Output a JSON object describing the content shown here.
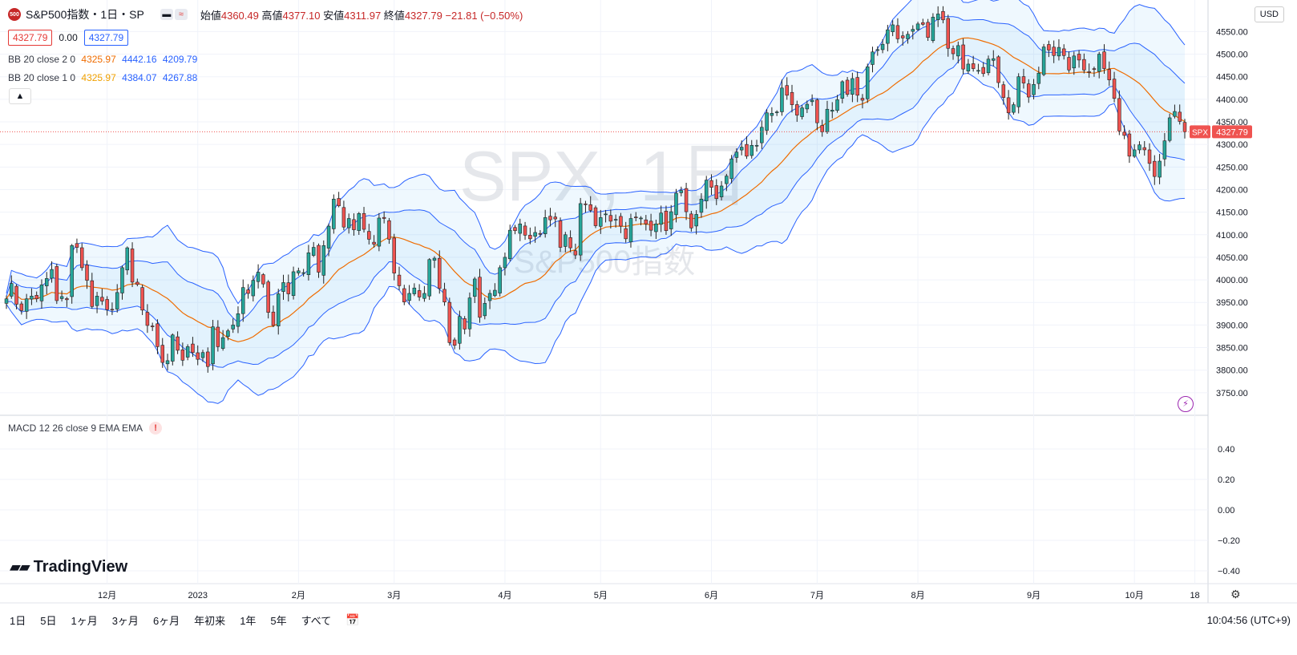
{
  "header": {
    "logo_text": "500",
    "symbol_title": "S&P500指数・1日・SP",
    "ohlc": [
      {
        "label": "始値",
        "value": "4360.49"
      },
      {
        "label": "高値",
        "value": "4377.10"
      },
      {
        "label": "安値",
        "value": "4311.97"
      },
      {
        "label": "終値",
        "value": "4327.79"
      },
      {
        "label": "",
        "value": "−21.81 (−0.50%)"
      }
    ],
    "sell_price": "4327.79",
    "spread": "0.00",
    "buy_price": "4327.79"
  },
  "indicators": [
    {
      "label": "BB 20 close 2 0",
      "values": [
        "4325.97",
        "4442.16",
        "4209.79"
      ],
      "colors": [
        "#ef6c00",
        "#2962ff",
        "#2962ff"
      ]
    },
    {
      "label": "BB 20 close 1 0",
      "values": [
        "4325.97",
        "4384.07",
        "4267.88"
      ],
      "colors": [
        "#f0a000",
        "#2962ff",
        "#2962ff"
      ]
    }
  ],
  "macd": {
    "label": "MACD 12 26 close 9 EMA EMA",
    "alert_icon": "exclamation-icon"
  },
  "watermark": {
    "line1": "SPX, 1日",
    "line2": "S&P500指数"
  },
  "currency": "USD",
  "price_tag": {
    "symbol": "SPX",
    "value": "4327.79"
  },
  "brand": "TradingView",
  "time_ranges": [
    "1日",
    "5日",
    "1ヶ月",
    "3ヶ月",
    "6ヶ月",
    "年初来",
    "1年",
    "5年",
    "すべて"
  ],
  "clock": "10:04:56 (UTC+9)",
  "colors": {
    "up": "#26a69a",
    "down": "#ef5350",
    "band": "#2962ff",
    "mid": "#ef6c00"
  },
  "chart_data": {
    "type": "candlestick",
    "ylim": [
      3700,
      4620
    ],
    "y_ticks": [
      3750,
      3800,
      3850,
      3900,
      3950,
      4000,
      4050,
      4100,
      4150,
      4200,
      4250,
      4300,
      4350,
      4400,
      4450,
      4500,
      4550
    ],
    "macd_ticks": [
      "0.40",
      "0.20",
      "0.00",
      "−0.20",
      "−0.40"
    ],
    "x_labels": [
      {
        "label": "12月",
        "i": 20
      },
      {
        "label": "2023",
        "i": 38
      },
      {
        "label": "2月",
        "i": 58
      },
      {
        "label": "3月",
        "i": 77
      },
      {
        "label": "4月",
        "i": 99
      },
      {
        "label": "5月",
        "i": 118
      },
      {
        "label": "6月",
        "i": 140
      },
      {
        "label": "7月",
        "i": 161
      },
      {
        "label": "8月",
        "i": 181
      },
      {
        "label": "9月",
        "i": 204
      },
      {
        "label": "10月",
        "i": 224
      },
      {
        "label": "18",
        "i": 236
      }
    ],
    "closes": [
      3958,
      3992,
      3946,
      3932,
      3958,
      3964,
      3958,
      3989,
      4003,
      4023,
      3954,
      3963,
      3956,
      4076,
      4072,
      4027,
      3999,
      3941,
      3964,
      3953,
      3934,
      3933,
      3972,
      4027,
      4071,
      3995,
      3990,
      3933,
      3899,
      3896,
      3852,
      3817,
      3821,
      3878,
      3844,
      3822,
      3852,
      3839,
      3824,
      3839,
      3808,
      3896,
      3852,
      3872,
      3887,
      3900,
      3925,
      3983,
      3970,
      3999,
      4017,
      3991,
      3928,
      3899,
      3969,
      3994,
      3969,
      4018,
      4020,
      4016,
      4060,
      4072,
      4017,
      4076,
      4119,
      4179,
      4164,
      4117,
      4136,
      4111,
      4147,
      4112,
      4090,
      4079,
      4137,
      4136,
      4090,
      4015,
      3987,
      3951,
      3970,
      3982,
      3962,
      3970,
      4045,
      4048,
      3981,
      3951,
      3861,
      3855,
      3919,
      3891,
      3960,
      4002,
      3917,
      3948,
      3970,
      3977,
      4027,
      4050,
      4110,
      4109,
      4124,
      4099,
      4091,
      4105,
      4101,
      4138,
      4133,
      4135,
      4072,
      4100,
      4071,
      4055,
      4169,
      4167,
      4154,
      4120,
      4138,
      4146,
      4130,
      4134,
      4119,
      4091,
      4136,
      4138,
      4137,
      4124,
      4110,
      4124,
      4148,
      4109,
      4151,
      4192,
      4198,
      4151,
      4115,
      4145,
      4179,
      4221,
      4205,
      4180,
      4208,
      4230,
      4268,
      4283,
      4294,
      4274,
      4298,
      4298,
      4338,
      4370,
      4369,
      4372,
      4425,
      4409,
      4388,
      4365,
      4381,
      4389,
      4398,
      4348,
      4328,
      4378,
      4376,
      4399,
      4439,
      4411,
      4446,
      4409,
      4398,
      4472,
      4505,
      4510,
      4522,
      4554,
      4565,
      4534,
      4536,
      4544,
      4555,
      4567,
      4566,
      4537,
      4582,
      4589,
      4576,
      4513,
      4501,
      4519,
      4467,
      4478,
      4468,
      4464,
      4457,
      4489,
      4490,
      4437,
      4404,
      4370,
      4388,
      4450,
      4436,
      4405,
      4433,
      4458,
      4516,
      4509,
      4497,
      4515,
      4497,
      4465,
      4496,
      4487,
      4465,
      4461,
      4467,
      4500,
      4468,
      4443,
      4402,
      4330,
      4320,
      4274,
      4288,
      4299,
      4288,
      4258,
      4229,
      4263,
      4308,
      4359,
      4373,
      4351,
      4328
    ]
  }
}
